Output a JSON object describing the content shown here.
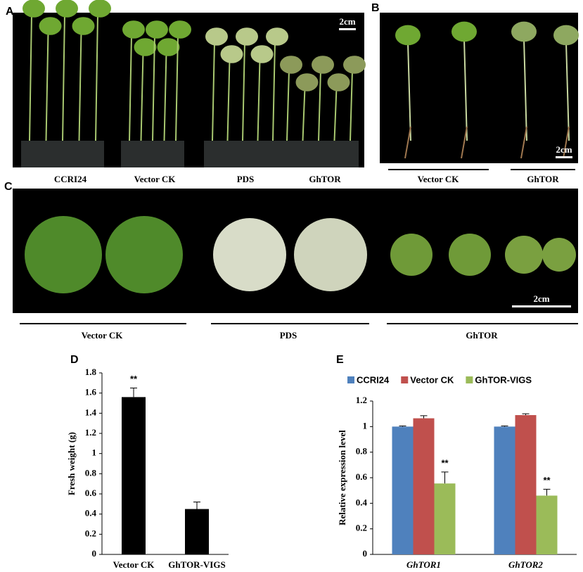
{
  "panels": {
    "a": {
      "label": "A",
      "scale": "2cm",
      "labels": [
        "CCRI24",
        "Vector CK",
        "PDS",
        "GhTOR"
      ]
    },
    "b": {
      "label": "B",
      "scale": "2cm",
      "labels": [
        "Vector CK",
        "GhTOR"
      ]
    },
    "c": {
      "label": "C",
      "scale": "2cm",
      "labels": [
        "Vector CK",
        "PDS",
        "GhTOR"
      ]
    }
  },
  "chart_data": [
    {
      "type": "bar",
      "label": "D",
      "ylabel": "Fresh weight (g)",
      "categories": [
        "Vector CK",
        "GhTOR-VIGS"
      ],
      "series": [
        {
          "color": "#000000",
          "values": [
            1.56,
            0.45
          ],
          "errors": [
            0.09,
            0.07
          ]
        }
      ],
      "annotations": [
        "**"
      ],
      "ylim": [
        0,
        1.8
      ],
      "yticks": [
        0,
        0.2,
        0.4,
        0.6,
        0.8,
        1,
        1.2,
        1.4,
        1.6,
        1.8
      ]
    },
    {
      "type": "bar",
      "label": "E",
      "ylabel": "Relative expression level",
      "categories": [
        "GhTOR1",
        "GhTOR2"
      ],
      "series": [
        {
          "name": "CCRI24",
          "color": "#4f81bd",
          "values": [
            1.0,
            1.0
          ],
          "errors": [
            0.005,
            0.005
          ]
        },
        {
          "name": "Vector CK",
          "color": "#c0504d",
          "values": [
            1.065,
            1.09
          ],
          "errors": [
            0.02,
            0.01
          ]
        },
        {
          "name": "GhTOR-VIGS",
          "color": "#9bbb59",
          "values": [
            0.555,
            0.46
          ],
          "errors": [
            0.09,
            0.05
          ]
        }
      ],
      "annotations": [
        "**",
        "**"
      ],
      "ylim": [
        0,
        1.2
      ],
      "yticks": [
        0,
        0.2,
        0.4,
        0.6,
        0.8,
        1,
        1.2
      ],
      "legend": "top"
    }
  ]
}
